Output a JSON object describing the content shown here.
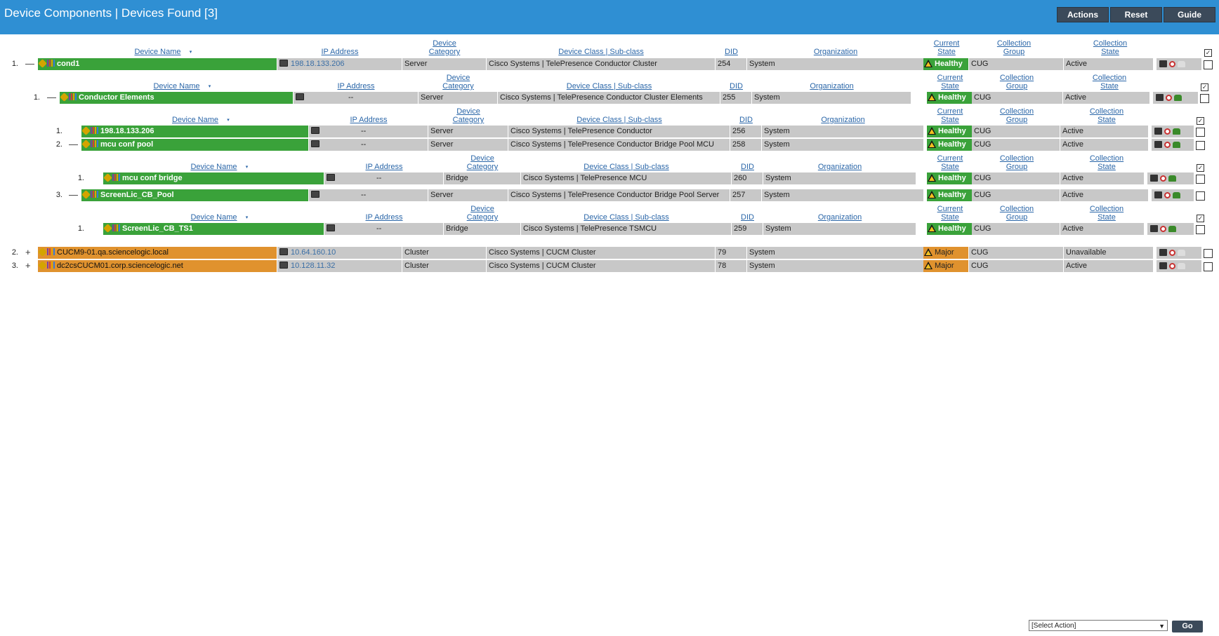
{
  "header": {
    "title": "Device Components | Devices Found [3]",
    "buttons": {
      "actions": "Actions",
      "reset": "Reset",
      "guide": "Guide"
    }
  },
  "columns": {
    "device_name": "Device Name",
    "ip_address": "IP Address",
    "device_category_1": "Device",
    "device_category_2": "Category",
    "device_class": "Device Class | Sub-class",
    "did": "DID",
    "organization": "Organization",
    "current_state_1": "Current",
    "current_state_2": "State",
    "collection_group_1": "Collection",
    "collection_group_2": "Group",
    "collection_state_1": "Collection",
    "collection_state_2": "State"
  },
  "rows": [
    {
      "num": "1.",
      "toggle": "—",
      "name": "cond1",
      "ip": "198.18.133.206",
      "category": "Server",
      "class": "Cisco Systems | TelePresence Conductor Cluster",
      "did": "254",
      "org": "System",
      "state": "Healthy",
      "group": "CUG",
      "cstate": "Active"
    },
    {
      "num": "1.",
      "toggle": "—",
      "name": "Conductor Elements",
      "ip": "--",
      "category": "Server",
      "class": "Cisco Systems | TelePresence Conductor Cluster Elements",
      "did": "255",
      "org": "System",
      "state": "Healthy",
      "group": "CUG",
      "cstate": "Active"
    },
    {
      "num": "1.",
      "toggle": "",
      "name": "198.18.133.206",
      "ip": "--",
      "category": "Server",
      "class": "Cisco Systems | TelePresence Conductor",
      "did": "256",
      "org": "System",
      "state": "Healthy",
      "group": "CUG",
      "cstate": "Active"
    },
    {
      "num": "2.",
      "toggle": "—",
      "name": "mcu conf pool",
      "ip": "--",
      "category": "Server",
      "class": "Cisco Systems | TelePresence Conductor Bridge Pool MCU",
      "did": "258",
      "org": "System",
      "state": "Healthy",
      "group": "CUG",
      "cstate": "Active"
    },
    {
      "num": "1.",
      "toggle": "",
      "name": "mcu conf bridge",
      "ip": "--",
      "category": "Bridge",
      "class": "Cisco Systems | TelePresence MCU",
      "did": "260",
      "org": "System",
      "state": "Healthy",
      "group": "CUG",
      "cstate": "Active"
    },
    {
      "num": "3.",
      "toggle": "—",
      "name": "ScreenLic_CB_Pool",
      "ip": "--",
      "category": "Server",
      "class": "Cisco Systems | TelePresence Conductor Bridge Pool Server",
      "did": "257",
      "org": "System",
      "state": "Healthy",
      "group": "CUG",
      "cstate": "Active"
    },
    {
      "num": "1.",
      "toggle": "",
      "name": "ScreenLic_CB_TS1",
      "ip": "--",
      "category": "Bridge",
      "class": "Cisco Systems | TelePresence TSMCU",
      "did": "259",
      "org": "System",
      "state": "Healthy",
      "group": "CUG",
      "cstate": "Active"
    },
    {
      "num": "2.",
      "toggle": "+",
      "name": "CUCM9-01.qa.sciencelogic.local",
      "ip": "10.64.160.10",
      "category": "Cluster",
      "class": "Cisco Systems | CUCM Cluster",
      "did": "79",
      "org": "System",
      "state": "Major",
      "group": "CUG",
      "cstate": "Unavailable"
    },
    {
      "num": "3.",
      "toggle": "+",
      "name": "dc2csCUCM01.corp.sciencelogic.net",
      "ip": "10.128.11.32",
      "category": "Cluster",
      "class": "Cisco Systems | CUCM Cluster",
      "did": "78",
      "org": "System",
      "state": "Major",
      "group": "CUG",
      "cstate": "Active"
    }
  ],
  "footer": {
    "select_action": "[Select Action]",
    "go": "Go"
  },
  "colors": {
    "topbar": "#2f8fd3",
    "healthy": "#3aa23a",
    "major": "#e0922e",
    "row": "#c8c8c8"
  }
}
